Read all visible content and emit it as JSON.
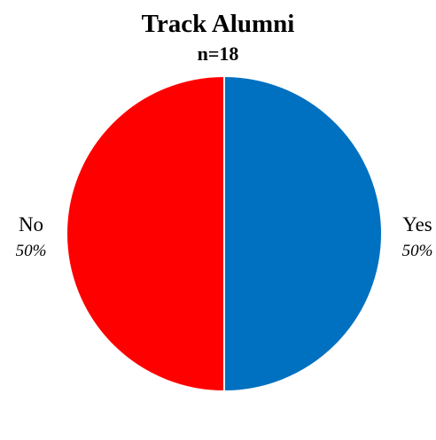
{
  "chart_data": {
    "type": "pie",
    "title": "Track Alumni",
    "subtitle": "n=18",
    "slices": [
      {
        "label": "Yes",
        "value": 50,
        "value_label": "50%",
        "color": "#0070C0"
      },
      {
        "label": "No",
        "value": 50,
        "value_label": "50%",
        "color": "#FF0000"
      }
    ],
    "start_angle": "12 o'clock",
    "direction": "clockwise",
    "label_position": "outside"
  }
}
